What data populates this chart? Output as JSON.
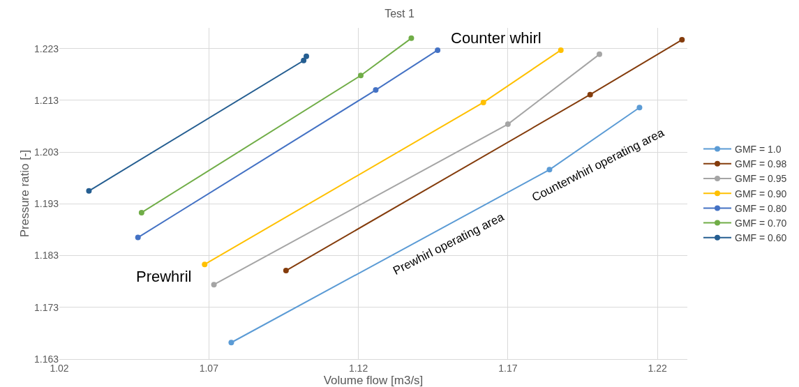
{
  "chart_data": {
    "type": "line",
    "title": "Test 1",
    "xlabel": "Volume flow [m3/s]",
    "ylabel": "Pressure ratio [-]",
    "annotations": [
      "Counter whirl",
      "Prewhril",
      "Prewhirl operating area",
      "Counterwhirl operating area"
    ],
    "xlim": [
      1.02,
      1.23
    ],
    "xticks": [
      1.02,
      1.07,
      1.12,
      1.17,
      1.22
    ],
    "ylim": [
      1.163,
      1.227
    ],
    "yticks": [
      1.163,
      1.173,
      1.183,
      1.193,
      1.203,
      1.213,
      1.223
    ],
    "grid": true,
    "legend": "right",
    "marker": "circle",
    "line_style": "solid",
    "series": [
      {
        "name": "GMF = 1.0",
        "color": "#5b9bd5",
        "x": [
          1.0775,
          1.1839,
          1.214
        ],
        "values": [
          1.1662,
          1.1996,
          1.2116
        ]
      },
      {
        "name": "GMF = 0.98",
        "color": "#843c0c",
        "x": [
          1.0958,
          1.1975,
          1.2282
        ],
        "values": [
          1.1801,
          1.2141,
          1.2247
        ]
      },
      {
        "name": "GMF = 0.95",
        "color": "#a5a5a5",
        "x": [
          1.0717,
          1.17,
          1.2006
        ],
        "values": [
          1.1774,
          1.2084,
          1.2219
        ]
      },
      {
        "name": "GMF = 0.90",
        "color": "#ffc000",
        "x": [
          1.0686,
          1.1618,
          1.1877
        ],
        "values": [
          1.1813,
          1.2126,
          1.2227
        ]
      },
      {
        "name": "GMF = 0.80",
        "color": "#4472c4",
        "x": [
          1.0463,
          1.1258,
          1.1465
        ],
        "values": [
          1.1865,
          1.215,
          1.2227
        ]
      },
      {
        "name": "GMF = 0.70",
        "color": "#70ad47",
        "x": [
          1.0475,
          1.1208,
          1.1377
        ],
        "values": [
          1.1913,
          1.2178,
          1.225
        ]
      },
      {
        "name": "GMF = 0.60",
        "color": "#255e91",
        "x": [
          1.0299,
          1.1017,
          1.1026
        ],
        "values": [
          1.1955,
          1.2207,
          1.2215
        ]
      }
    ]
  }
}
